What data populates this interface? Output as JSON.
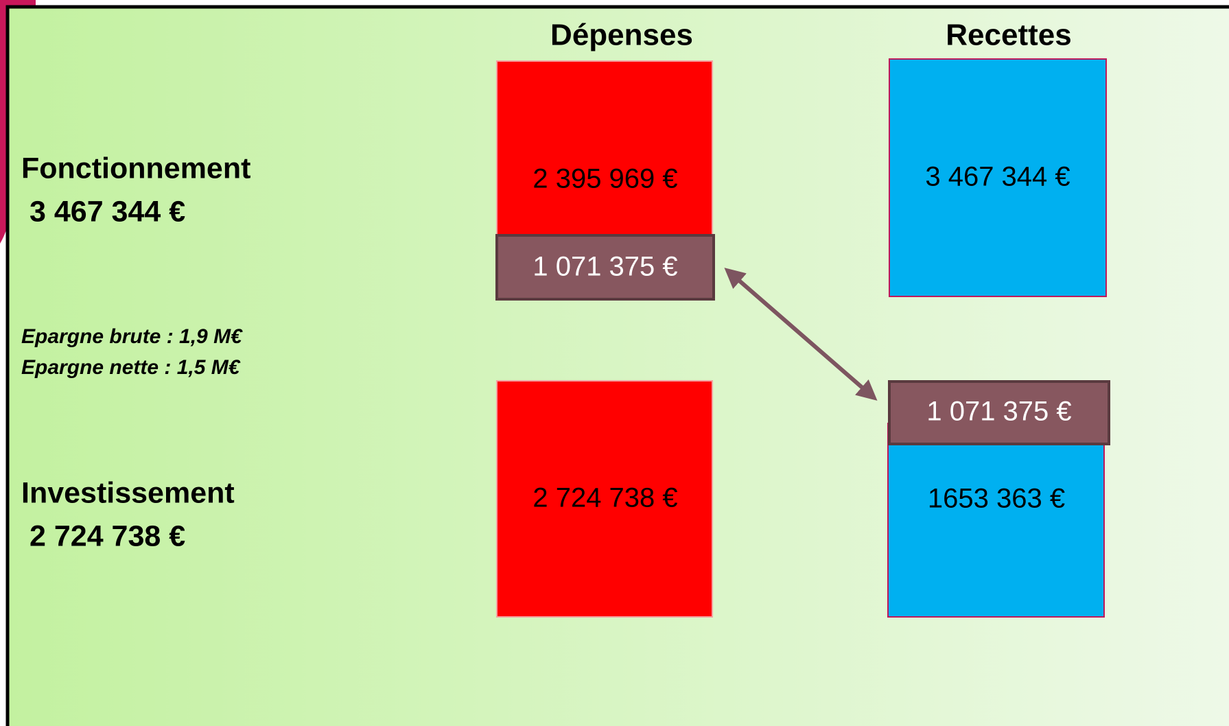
{
  "columns": {
    "depenses": "Dépenses",
    "recettes": "Recettes"
  },
  "rows": {
    "fonctionnement": {
      "label": "Fonctionnement",
      "total": "3 467 344 €"
    },
    "epargne": {
      "brute": "Epargne brute : 1,9 M€",
      "nette": "Epargne nette : 1,5 M€"
    },
    "investissement": {
      "label": "Investissement",
      "total": "2 724 738 €"
    }
  },
  "boxes": {
    "depenses_fonctionnement": "2 395 969 €",
    "depenses_virement": "1 071 375 €",
    "recettes_fonctionnement": "3 467 344 €",
    "depenses_investissement": "2 724 738 €",
    "recettes_virement": "1 071 375 €",
    "recettes_investissement": "1653 363 €"
  }
}
